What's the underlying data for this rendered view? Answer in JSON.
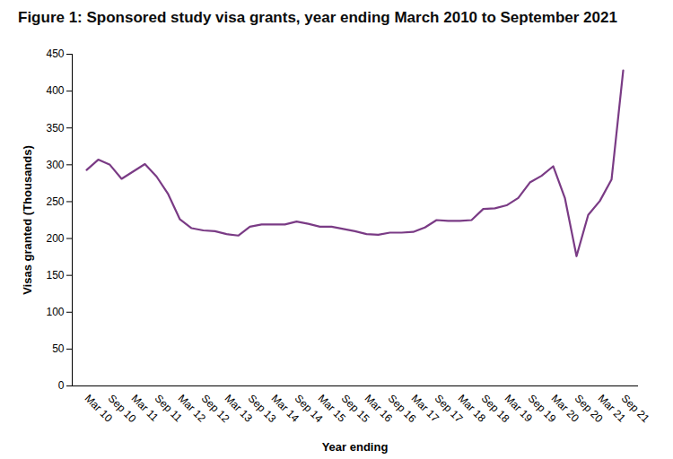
{
  "chart_data": {
    "type": "line",
    "title": "Figure 1: Sponsored study visa grants, year ending March 2010 to September 2021",
    "xlabel": "Year ending",
    "ylabel": "Visas granted (Thousands)",
    "categories": [
      "Mar 10",
      null,
      "Sep 10",
      null,
      "Mar 11",
      null,
      "Sep 11",
      null,
      "Mar 12",
      null,
      "Sep 12",
      null,
      "Mar 13",
      null,
      "Sep 13",
      null,
      "Mar 14",
      null,
      "Sep 14",
      null,
      "Mar 15",
      null,
      "Sep 15",
      null,
      "Mar 16",
      null,
      "Sep 16",
      null,
      "Mar 17",
      null,
      "Sep 17",
      null,
      "Mar 18",
      null,
      "Sep 18",
      null,
      "Mar 19",
      null,
      "Sep 19",
      null,
      "Mar 20",
      null,
      "Sep 20",
      null,
      "Mar 21",
      null,
      "Sep 21"
    ],
    "values": [
      293,
      307,
      300,
      281,
      291,
      301,
      284,
      260,
      226,
      214,
      211,
      210,
      206,
      204,
      216,
      219,
      219,
      219,
      223,
      220,
      216,
      216,
      213,
      210,
      206,
      205,
      208,
      208,
      209,
      215,
      225,
      224,
      224,
      225,
      240,
      241,
      245,
      255,
      276,
      285,
      298,
      255,
      176,
      232,
      251,
      280,
      428
    ],
    "color": "#7a3b85",
    "ylim": [
      0,
      450
    ],
    "yticks": [
      0,
      50,
      100,
      150,
      200,
      250,
      300,
      350,
      400,
      450
    ],
    "grid": false
  }
}
